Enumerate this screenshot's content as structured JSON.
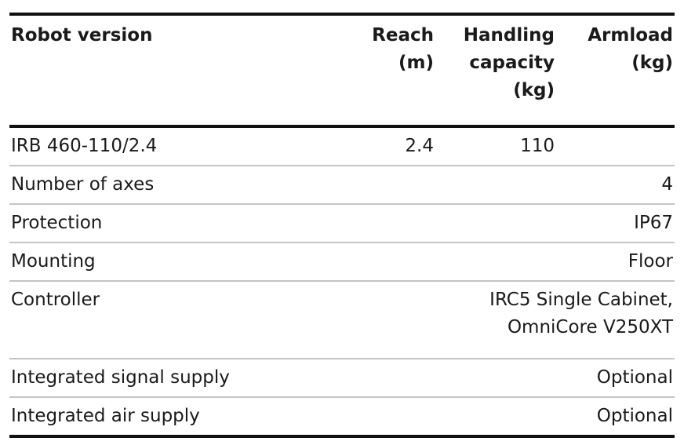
{
  "table": {
    "headers": [
      "Robot version",
      "Reach\n(m)",
      "Handling\ncapacity\n(kg)",
      "Armload\n(kg)"
    ],
    "rows": [
      [
        "IRB 460-110/2.4",
        "2.4",
        "110",
        null
      ],
      [
        "Number of axes",
        "4"
      ],
      [
        "Protection",
        "IP67"
      ],
      [
        "Mounting",
        "Floor"
      ],
      [
        "Controller",
        "IRC5 Single Cabinet,\nOmniCore V250XT"
      ],
      [
        "Integrated signal supply",
        "Optional"
      ],
      [
        "Integrated air supply",
        "Optional"
      ]
    ]
  }
}
